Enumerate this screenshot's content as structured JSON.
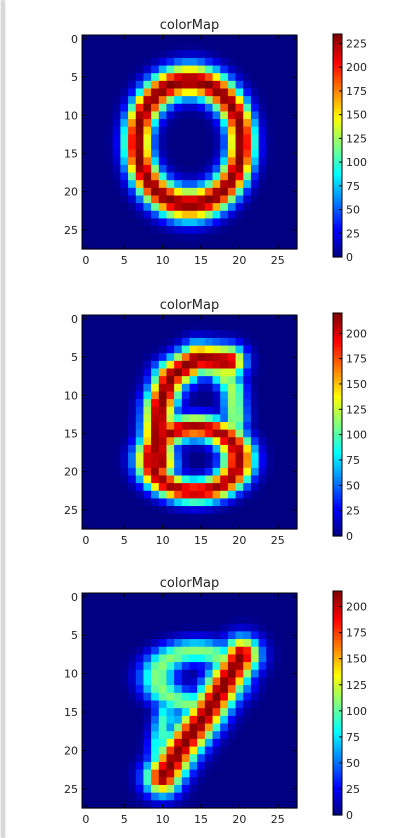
{
  "chart_data": [
    {
      "type": "heatmap",
      "title": "colorMap",
      "image_shape": [
        28,
        28
      ],
      "x_ticks": [
        0,
        5,
        10,
        15,
        20,
        25
      ],
      "y_ticks": [
        0,
        5,
        10,
        15,
        20,
        25
      ],
      "xlim": [
        -0.5,
        27.5
      ],
      "ylim": [
        27.5,
        -0.5
      ],
      "colormap": "jet",
      "colorbar_range": [
        0,
        235
      ],
      "colorbar_ticks": [
        0,
        25,
        50,
        75,
        100,
        125,
        150,
        175,
        200,
        225
      ],
      "shape": "digit-0",
      "strokes": [
        {
          "type": "ellipse",
          "cx": 13.5,
          "cy": 13.6,
          "rx": 6.8,
          "ry": 8.1,
          "width": 1.4,
          "intensity": 235
        }
      ]
    },
    {
      "type": "heatmap",
      "title": "colorMap",
      "image_shape": [
        28,
        28
      ],
      "x_ticks": [
        0,
        5,
        10,
        15,
        20,
        25
      ],
      "y_ticks": [
        0,
        5,
        10,
        15,
        20,
        25
      ],
      "xlim": [
        -0.5,
        27.5
      ],
      "ylim": [
        27.5,
        -0.5
      ],
      "colormap": "jet",
      "colorbar_range": [
        0,
        220
      ],
      "colorbar_ticks": [
        0,
        25,
        50,
        75,
        100,
        125,
        150,
        175,
        200
      ],
      "shape": "digit-6",
      "strokes": [
        {
          "type": "ellipse",
          "cx": 14.2,
          "cy": 18.4,
          "rx": 5.7,
          "ry": 4.2,
          "width": 1.3,
          "intensity": 215
        },
        {
          "type": "polyline",
          "points": [
            [
              18.6,
              5.6
            ],
            [
              14.5,
              5.2
            ],
            [
              11.0,
              7.6
            ],
            [
              9.6,
              11.5
            ],
            [
              9.3,
              15.5
            ],
            [
              9.6,
              19.0
            ]
          ],
          "width": 1.4,
          "intensity": 220
        },
        {
          "type": "polyline",
          "points": [
            [
              16.8,
              6.2
            ],
            [
              19.2,
              9.0
            ],
            [
              19.5,
              13.2
            ],
            [
              18.9,
              15.0
            ]
          ],
          "width": 1.1,
          "intensity": 120
        }
      ]
    },
    {
      "type": "heatmap",
      "title": "colorMap",
      "image_shape": [
        28,
        28
      ],
      "x_ticks": [
        0,
        5,
        10,
        15,
        20,
        25
      ],
      "y_ticks": [
        0,
        5,
        10,
        15,
        20,
        25
      ],
      "xlim": [
        -0.5,
        27.5
      ],
      "ylim": [
        27.5,
        -0.5
      ],
      "colormap": "jet",
      "colorbar_range": [
        0,
        215
      ],
      "colorbar_ticks": [
        0,
        25,
        50,
        75,
        100,
        125,
        150,
        175,
        200
      ],
      "shape": "digit-9",
      "strokes": [
        {
          "type": "ellipse",
          "cx": 14.3,
          "cy": 10.5,
          "rx": 5.0,
          "ry": 3.4,
          "width": 1.4,
          "intensity": 110
        },
        {
          "type": "polyline",
          "points": [
            [
              20.3,
              7.6
            ],
            [
              18.0,
              11.5
            ],
            [
              15.5,
              15.5
            ],
            [
              12.5,
              19.5
            ],
            [
              10.0,
              23.5
            ]
          ],
          "width": 1.6,
          "intensity": 215
        },
        {
          "type": "polyline",
          "points": [
            [
              10.3,
              15.5
            ],
            [
              9.5,
              19.5
            ],
            [
              9.7,
              23.5
            ]
          ],
          "width": 1.0,
          "intensity": 95
        }
      ]
    }
  ]
}
